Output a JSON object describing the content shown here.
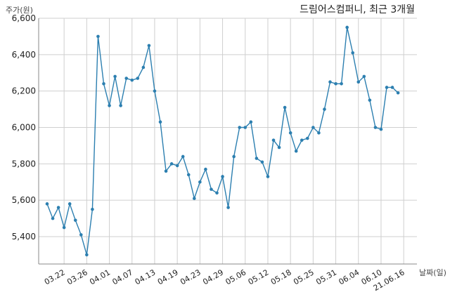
{
  "chart_data": {
    "type": "line",
    "title": "드림어스컴퍼니, 최근 3개월",
    "ylabel": "주가(원)",
    "xlabel": "날짜(일)",
    "ylim": [
      5250,
      6600
    ],
    "yticks": [
      5400,
      5600,
      5800,
      6000,
      6200,
      6400,
      6600
    ],
    "ytick_labels": [
      "5,400",
      "5,600",
      "5,800",
      "6,000",
      "6,200",
      "6,400",
      "6,600"
    ],
    "xtick_labels": [
      "03.22",
      "03.26",
      "04.01",
      "04.07",
      "04.13",
      "04.19",
      "04.23",
      "04.29",
      "05.06",
      "05.12",
      "05.18",
      "05.25",
      "05.31",
      "06.04",
      "06.10",
      "21.06.16"
    ],
    "xtick_indices": [
      3,
      7,
      11,
      15,
      19,
      23,
      27,
      31,
      35,
      39,
      43,
      47,
      51,
      55,
      59,
      63
    ],
    "grid": true,
    "series": [
      {
        "color": "#2c7fb0",
        "values": [
          5580,
          5500,
          5560,
          5450,
          5580,
          5490,
          5410,
          5300,
          5550,
          6500,
          6240,
          6120,
          6280,
          6120,
          6270,
          6260,
          6270,
          6330,
          6450,
          6200,
          6030,
          5760,
          5800,
          5790,
          5840,
          5740,
          5610,
          5700,
          5770,
          5660,
          5640,
          5730,
          5560,
          5840,
          6000,
          6000,
          6030,
          5830,
          5810,
          5730,
          5930,
          5890,
          6110,
          5970,
          5870,
          5930,
          5940,
          6000,
          5970,
          6100,
          6250,
          6240,
          6240,
          6550,
          6410,
          6250,
          6280,
          6150,
          6000,
          5990,
          6220,
          6220,
          6190
        ]
      }
    ]
  }
}
